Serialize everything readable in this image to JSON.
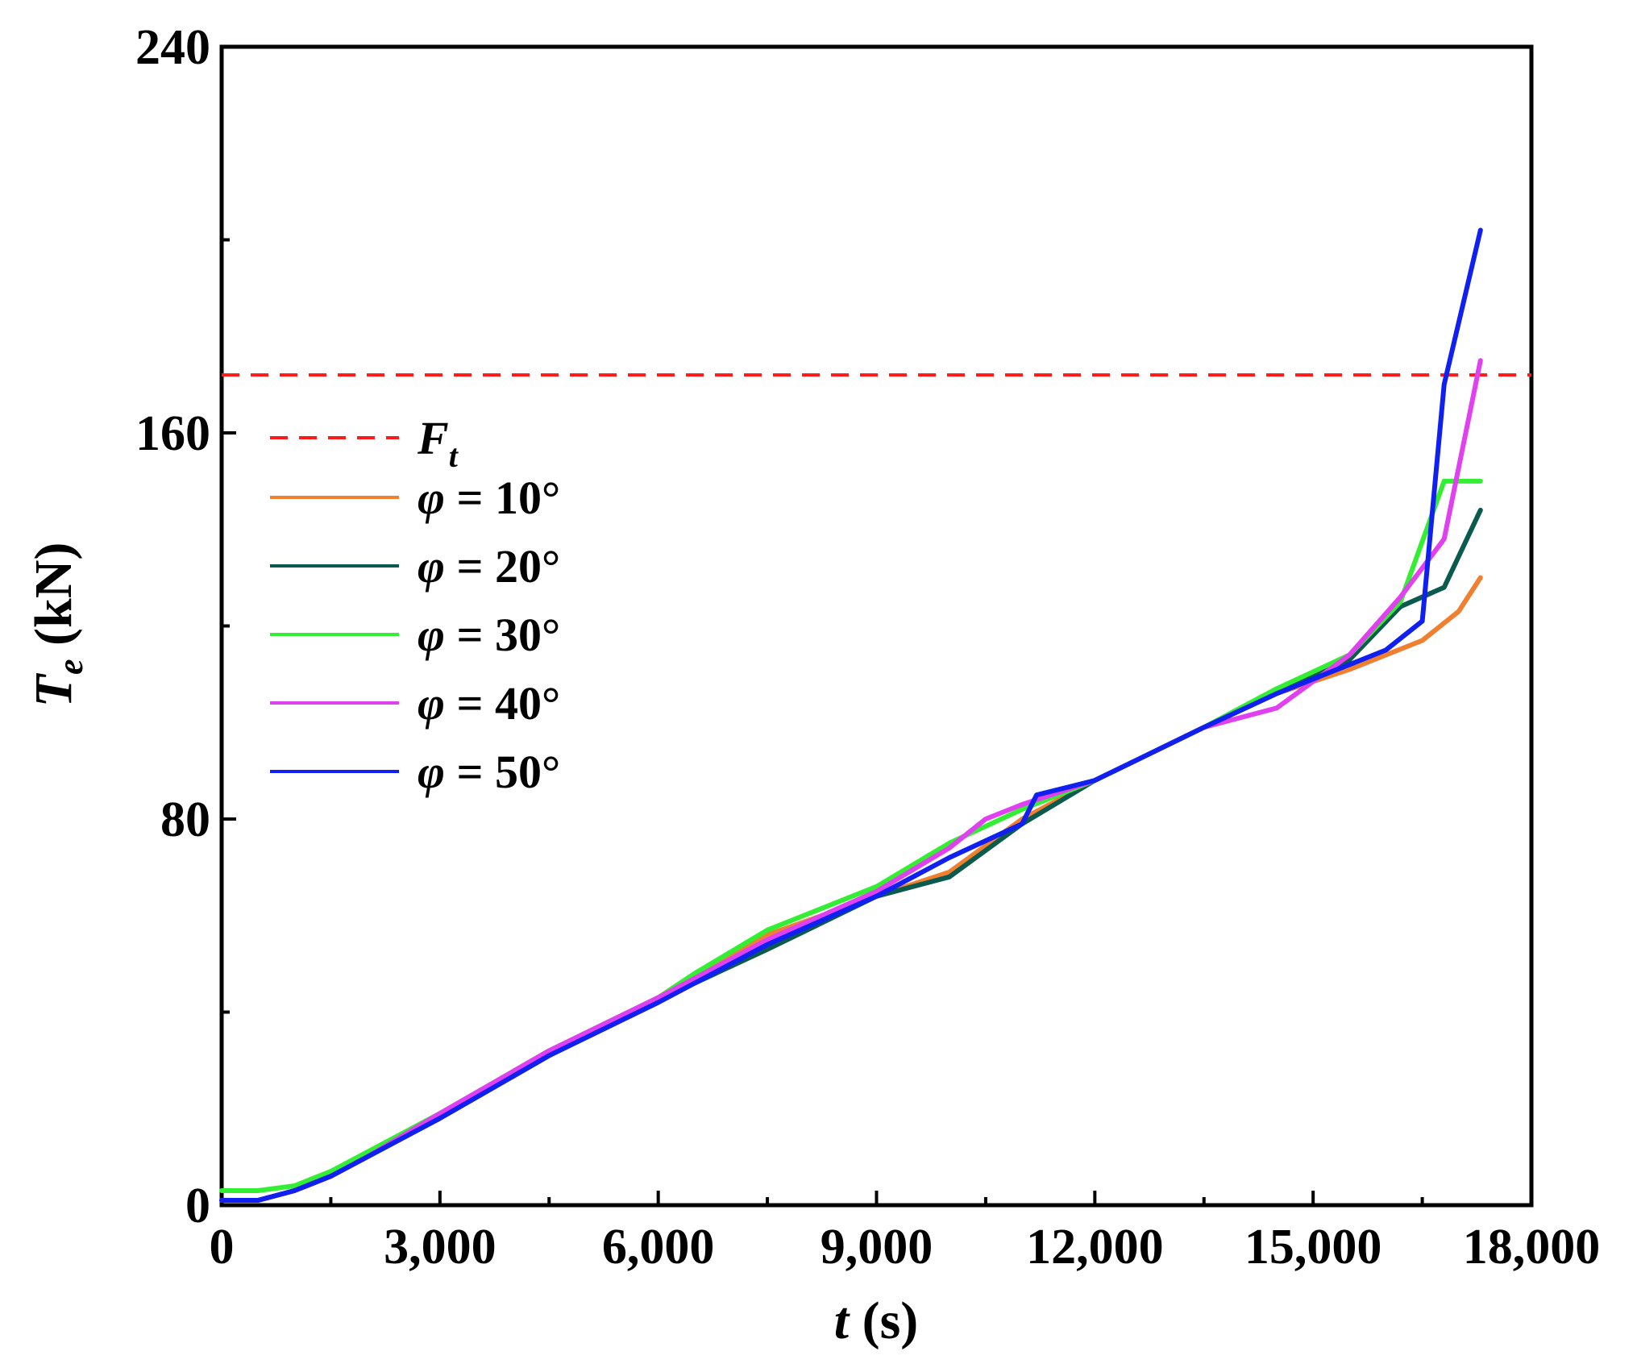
{
  "chart_data": {
    "type": "line",
    "xlabel": {
      "italic": "t",
      "rest": " (s)"
    },
    "ylabel": {
      "italic": "T",
      "subscript": "e",
      "rest": " (kN)"
    },
    "xlim": [
      0,
      18000
    ],
    "ylim": [
      0,
      240
    ],
    "x_ticks": [
      0,
      3000,
      6000,
      9000,
      12000,
      15000,
      18000
    ],
    "x_tick_labels": [
      "0",
      "3,000",
      "6,000",
      "9,000",
      "12,000",
      "15,000",
      "18,000"
    ],
    "y_ticks": [
      0,
      80,
      160,
      240
    ],
    "y_tick_labels": [
      "0",
      "80",
      "160",
      "240"
    ],
    "y_minor_ticks": [
      40,
      120,
      200
    ],
    "x_minor_ticks": [
      1500,
      4500,
      7500,
      10500,
      13500,
      16500
    ],
    "grid": false,
    "legend_position": "left",
    "reference_line": {
      "name": "F",
      "subscript": "t",
      "y": 172,
      "color": "#ff1a1a",
      "style": "dashed"
    },
    "series": [
      {
        "name": "φ = 10°",
        "color": "#f08030",
        "x": [
          0,
          500,
          1000,
          1500,
          2000,
          3000,
          4500,
          6000,
          6500,
          7500,
          9000,
          10000,
          11000,
          12000,
          13500,
          14500,
          15500,
          16500,
          17000,
          17300
        ],
        "y": [
          1,
          1,
          3,
          6,
          10,
          18,
          31,
          43,
          47,
          56,
          64,
          69,
          80,
          88,
          99,
          106,
          111,
          117,
          123,
          130
        ]
      },
      {
        "name": "φ = 20°",
        "color": "#0b5a4e",
        "x": [
          0,
          500,
          1000,
          1500,
          2000,
          3000,
          4500,
          6000,
          6500,
          7500,
          9000,
          10000,
          11000,
          12000,
          13500,
          14500,
          15500,
          16200,
          16800,
          17300
        ],
        "y": [
          1,
          1,
          3,
          6,
          10,
          18,
          31,
          43,
          46,
          53,
          64,
          68,
          79,
          88,
          99,
          106,
          113,
          124,
          128,
          144
        ]
      },
      {
        "name": "φ = 30°",
        "color": "#33ee33",
        "x": [
          0,
          500,
          1000,
          1500,
          2000,
          3000,
          4500,
          6000,
          6500,
          7500,
          9000,
          10000,
          11000,
          12000,
          13500,
          14500,
          15500,
          16200,
          16800,
          17300
        ],
        "y": [
          3,
          3,
          4,
          7,
          11,
          19,
          32,
          43,
          48,
          57,
          66,
          75,
          82,
          88,
          99,
          107,
          114,
          125,
          150,
          150
        ]
      },
      {
        "name": "φ = 40°",
        "color": "#e040f0",
        "x": [
          0,
          500,
          1000,
          1500,
          2000,
          3000,
          4500,
          6000,
          6500,
          7500,
          9000,
          10000,
          10500,
          11000,
          12000,
          13500,
          14500,
          15500,
          16200,
          16800,
          17300
        ],
        "y": [
          1,
          1,
          3,
          6,
          10,
          19,
          32,
          43,
          47,
          55,
          65,
          74,
          80,
          83,
          88,
          99,
          103,
          114,
          126,
          138,
          175
        ]
      },
      {
        "name": "φ = 50°",
        "color": "#1020f0",
        "x": [
          0,
          500,
          1000,
          1500,
          2000,
          3000,
          4500,
          6000,
          6500,
          7500,
          9000,
          10000,
          11000,
          11200,
          12000,
          13500,
          14500,
          15500,
          16000,
          16500,
          16800,
          17300
        ],
        "y": [
          1,
          1,
          3,
          6,
          10,
          18,
          31,
          42,
          46,
          54,
          64,
          72,
          79,
          85,
          88,
          99,
          106,
          112,
          115,
          121,
          170,
          202
        ]
      }
    ]
  }
}
